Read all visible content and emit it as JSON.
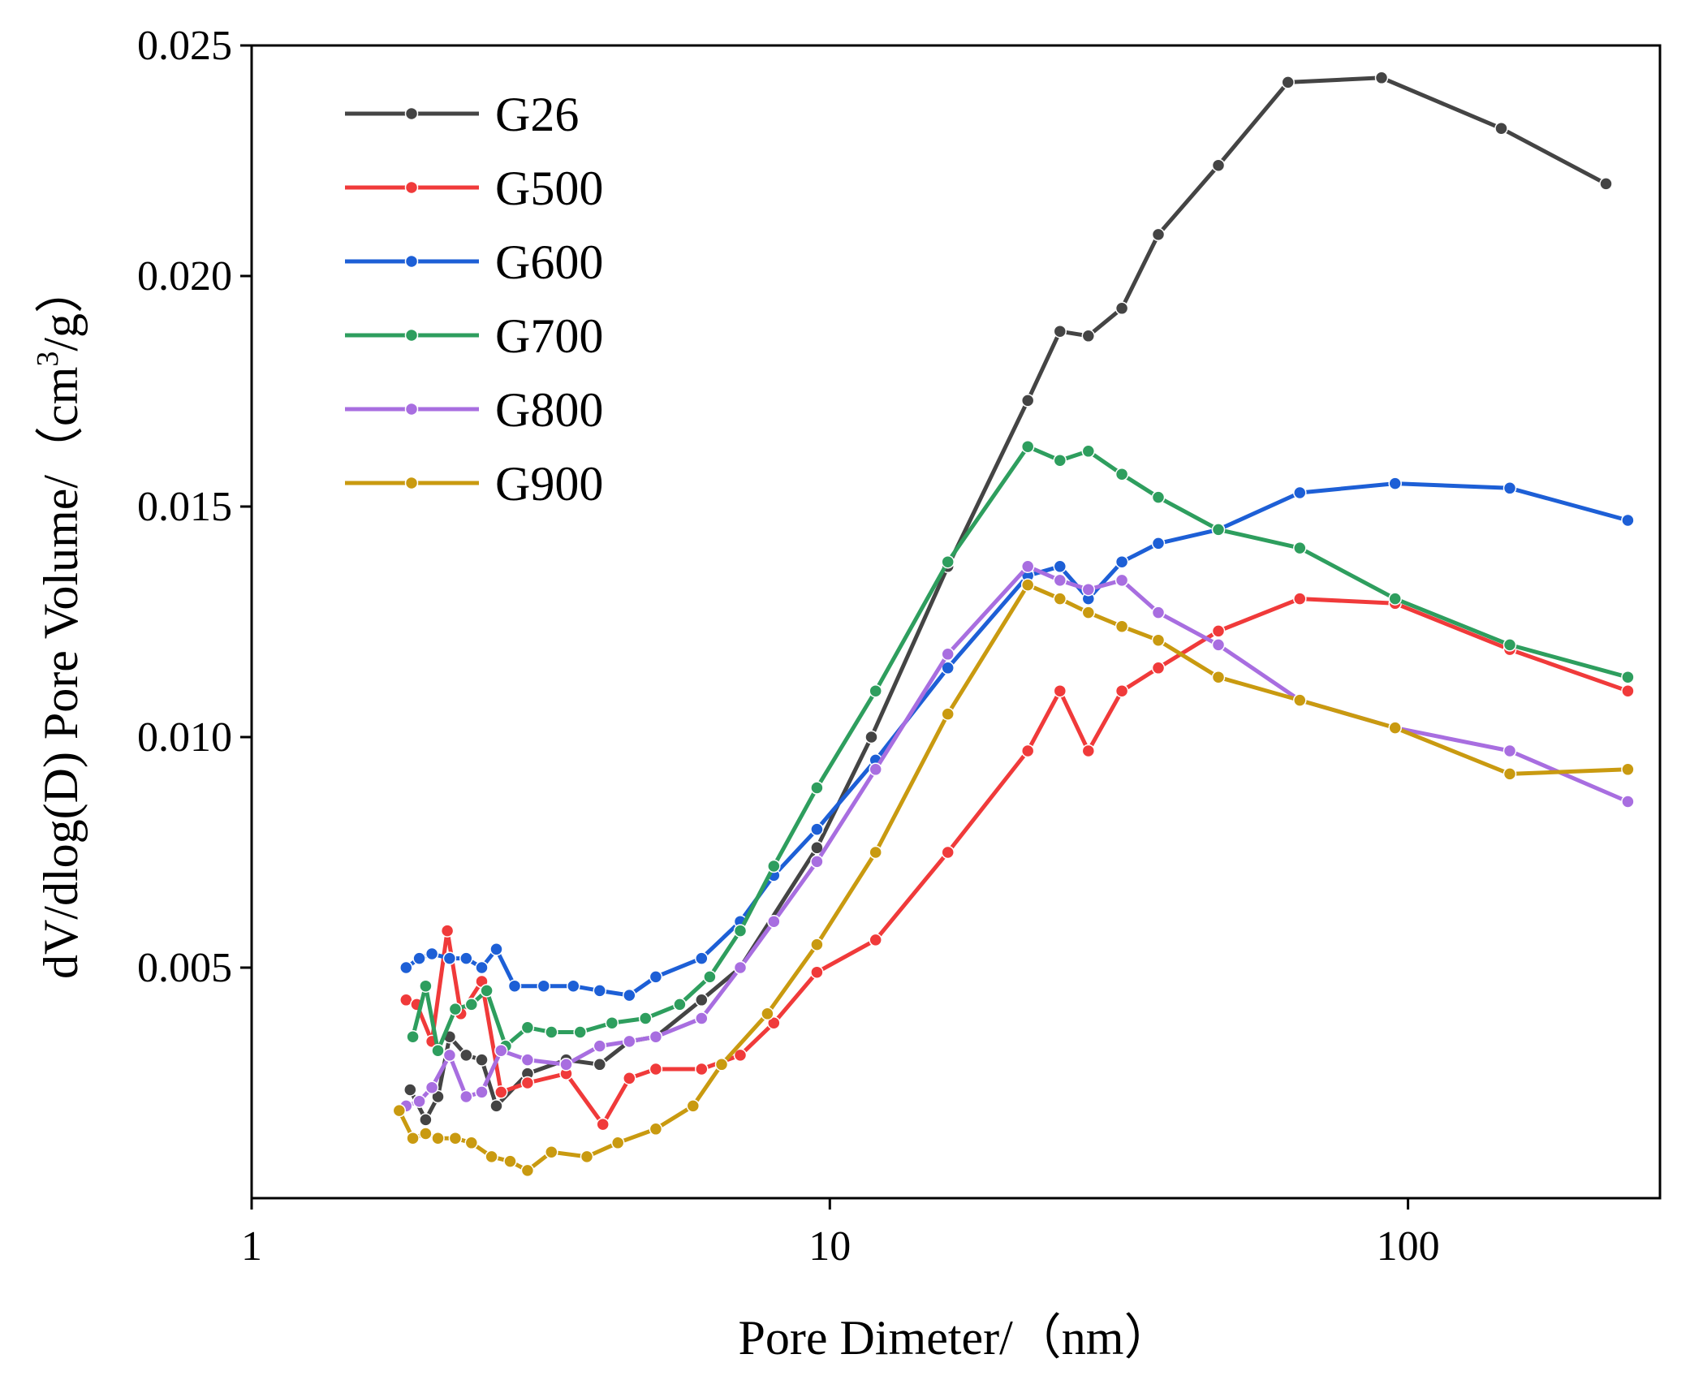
{
  "chart_data": {
    "type": "line",
    "title": "",
    "xlabel": "Pore Dimeter/（nm）",
    "ylabel_main": "dV/dlog(D) Pore Volume/（cm",
    "ylabel_sup": "3",
    "ylabel_tail": "/g）",
    "xscale": "log",
    "xlim": [
      1,
      250
    ],
    "ylim": [
      0,
      0.025
    ],
    "xticks": [
      {
        "value": 1,
        "label": "1"
      },
      {
        "value": 10,
        "label": "10"
      },
      {
        "value": 100,
        "label": "100"
      }
    ],
    "yticks": [
      {
        "value": 0.005,
        "label": "0.005"
      },
      {
        "value": 0.01,
        "label": "0.010"
      },
      {
        "value": 0.015,
        "label": "0.015"
      },
      {
        "value": 0.02,
        "label": "0.020"
      },
      {
        "value": 0.025,
        "label": "0.025"
      }
    ],
    "legend_position": "top-left",
    "series": [
      {
        "name": "G26",
        "color": "#444444",
        "points": [
          [
            1.88,
            0.00235
          ],
          [
            2.0,
            0.0017
          ],
          [
            2.1,
            0.0022
          ],
          [
            2.2,
            0.0035
          ],
          [
            2.35,
            0.0031
          ],
          [
            2.5,
            0.003
          ],
          [
            2.65,
            0.002
          ],
          [
            3.0,
            0.0027
          ],
          [
            3.5,
            0.003
          ],
          [
            4.0,
            0.0029
          ],
          [
            4.5,
            0.0034
          ],
          [
            5.0,
            0.0035
          ],
          [
            6.0,
            0.0043
          ],
          [
            7.0,
            0.005
          ],
          [
            9.5,
            0.0076
          ],
          [
            11.8,
            0.01
          ],
          [
            16.0,
            0.0137
          ],
          [
            22.0,
            0.0173
          ],
          [
            25.0,
            0.0188
          ],
          [
            28.0,
            0.0187
          ],
          [
            32.0,
            0.0193
          ],
          [
            37.0,
            0.0209
          ],
          [
            47.0,
            0.0224
          ],
          [
            62.0,
            0.0242
          ],
          [
            90.0,
            0.0243
          ],
          [
            145.0,
            0.0232
          ],
          [
            220.0,
            0.022
          ]
        ]
      },
      {
        "name": "G500",
        "color": "#f03a3a",
        "points": [
          [
            1.85,
            0.0043
          ],
          [
            1.93,
            0.0042
          ],
          [
            2.05,
            0.0034
          ],
          [
            2.18,
            0.0058
          ],
          [
            2.3,
            0.004
          ],
          [
            2.5,
            0.0047
          ],
          [
            2.7,
            0.0023
          ],
          [
            3.0,
            0.0025
          ],
          [
            3.5,
            0.0027
          ],
          [
            4.05,
            0.0016
          ],
          [
            4.5,
            0.0026
          ],
          [
            5.0,
            0.0028
          ],
          [
            6.0,
            0.0028
          ],
          [
            7.0,
            0.0031
          ],
          [
            8.0,
            0.0038
          ],
          [
            9.5,
            0.0049
          ],
          [
            12.0,
            0.0056
          ],
          [
            16.0,
            0.0075
          ],
          [
            22.0,
            0.0097
          ],
          [
            25.0,
            0.011
          ],
          [
            28.0,
            0.0097
          ],
          [
            32.0,
            0.011
          ],
          [
            37.0,
            0.0115
          ],
          [
            47.0,
            0.0123
          ],
          [
            65.0,
            0.013
          ],
          [
            95.0,
            0.0129
          ],
          [
            150.0,
            0.0119
          ],
          [
            240.0,
            0.011
          ]
        ]
      },
      {
        "name": "G600",
        "color": "#1d5fd6",
        "points": [
          [
            1.85,
            0.005
          ],
          [
            1.95,
            0.0052
          ],
          [
            2.05,
            0.0053
          ],
          [
            2.2,
            0.0052
          ],
          [
            2.35,
            0.0052
          ],
          [
            2.5,
            0.005
          ],
          [
            2.65,
            0.0054
          ],
          [
            2.85,
            0.0046
          ],
          [
            3.2,
            0.0046
          ],
          [
            3.6,
            0.0046
          ],
          [
            4.0,
            0.0045
          ],
          [
            4.5,
            0.0044
          ],
          [
            5.0,
            0.0048
          ],
          [
            6.0,
            0.0052
          ],
          [
            7.0,
            0.006
          ],
          [
            8.0,
            0.007
          ],
          [
            9.5,
            0.008
          ],
          [
            12.0,
            0.0095
          ],
          [
            16.0,
            0.0115
          ],
          [
            22.0,
            0.0135
          ],
          [
            25.0,
            0.0137
          ],
          [
            28.0,
            0.013
          ],
          [
            32.0,
            0.0138
          ],
          [
            37.0,
            0.0142
          ],
          [
            47.0,
            0.0145
          ],
          [
            65.0,
            0.0153
          ],
          [
            95.0,
            0.0155
          ],
          [
            150.0,
            0.0154
          ],
          [
            240.0,
            0.0147
          ]
        ]
      },
      {
        "name": "G700",
        "color": "#2e9e5e",
        "points": [
          [
            1.9,
            0.0035
          ],
          [
            2.0,
            0.0046
          ],
          [
            2.1,
            0.0032
          ],
          [
            2.25,
            0.0041
          ],
          [
            2.4,
            0.0042
          ],
          [
            2.55,
            0.0045
          ],
          [
            2.75,
            0.0033
          ],
          [
            3.0,
            0.0037
          ],
          [
            3.3,
            0.0036
          ],
          [
            3.7,
            0.0036
          ],
          [
            4.2,
            0.0038
          ],
          [
            4.8,
            0.0039
          ],
          [
            5.5,
            0.0042
          ],
          [
            6.2,
            0.0048
          ],
          [
            7.0,
            0.0058
          ],
          [
            8.0,
            0.0072
          ],
          [
            9.5,
            0.0089
          ],
          [
            12.0,
            0.011
          ],
          [
            16.0,
            0.0138
          ],
          [
            22.0,
            0.0163
          ],
          [
            25.0,
            0.016
          ],
          [
            28.0,
            0.0162
          ],
          [
            32.0,
            0.0157
          ],
          [
            37.0,
            0.0152
          ],
          [
            47.0,
            0.0145
          ],
          [
            65.0,
            0.0141
          ],
          [
            95.0,
            0.013
          ],
          [
            150.0,
            0.012
          ],
          [
            240.0,
            0.0113
          ]
        ]
      },
      {
        "name": "G800",
        "color": "#a86ee0",
        "points": [
          [
            1.85,
            0.002
          ],
          [
            1.95,
            0.0021
          ],
          [
            2.05,
            0.0024
          ],
          [
            2.2,
            0.0031
          ],
          [
            2.35,
            0.0022
          ],
          [
            2.5,
            0.0023
          ],
          [
            2.7,
            0.0032
          ],
          [
            3.0,
            0.003
          ],
          [
            3.5,
            0.0029
          ],
          [
            4.0,
            0.0033
          ],
          [
            4.5,
            0.0034
          ],
          [
            5.0,
            0.0035
          ],
          [
            6.0,
            0.0039
          ],
          [
            7.0,
            0.005
          ],
          [
            8.0,
            0.006
          ],
          [
            9.5,
            0.0073
          ],
          [
            12.0,
            0.0093
          ],
          [
            16.0,
            0.0118
          ],
          [
            22.0,
            0.0137
          ],
          [
            25.0,
            0.0134
          ],
          [
            28.0,
            0.0132
          ],
          [
            32.0,
            0.0134
          ],
          [
            37.0,
            0.0127
          ],
          [
            47.0,
            0.012
          ],
          [
            65.0,
            0.0108
          ],
          [
            95.0,
            0.0102
          ],
          [
            150.0,
            0.0097
          ],
          [
            240.0,
            0.0086
          ]
        ]
      },
      {
        "name": "G900",
        "color": "#c99a10",
        "points": [
          [
            1.8,
            0.0019
          ],
          [
            1.9,
            0.0013
          ],
          [
            2.0,
            0.0014
          ],
          [
            2.1,
            0.0013
          ],
          [
            2.25,
            0.0013
          ],
          [
            2.4,
            0.0012
          ],
          [
            2.6,
            0.0009
          ],
          [
            2.8,
            0.0008
          ],
          [
            3.0,
            0.0006
          ],
          [
            3.3,
            0.001
          ],
          [
            3.8,
            0.0009
          ],
          [
            4.3,
            0.0012
          ],
          [
            5.0,
            0.0015
          ],
          [
            5.8,
            0.002
          ],
          [
            6.5,
            0.0029
          ],
          [
            7.8,
            0.004
          ],
          [
            9.5,
            0.0055
          ],
          [
            12.0,
            0.0075
          ],
          [
            16.0,
            0.0105
          ],
          [
            22.0,
            0.0133
          ],
          [
            25.0,
            0.013
          ],
          [
            28.0,
            0.0127
          ],
          [
            32.0,
            0.0124
          ],
          [
            37.0,
            0.0121
          ],
          [
            47.0,
            0.0113
          ],
          [
            65.0,
            0.0108
          ],
          [
            95.0,
            0.0102
          ],
          [
            150.0,
            0.0092
          ],
          [
            240.0,
            0.0093
          ]
        ]
      }
    ]
  }
}
